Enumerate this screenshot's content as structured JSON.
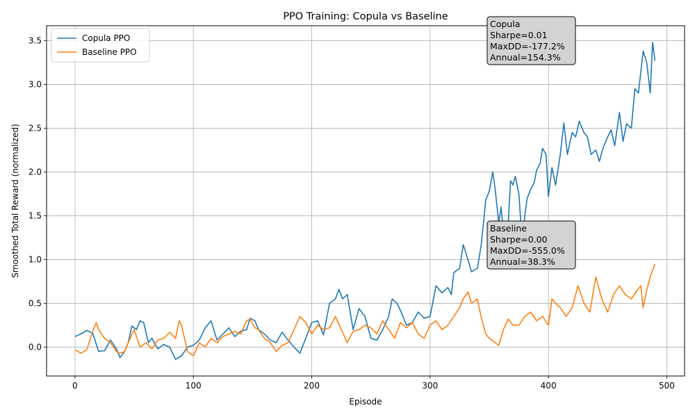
{
  "chart_data": {
    "type": "line",
    "title": "PPO Training: Copula vs Baseline",
    "xlabel": "Episode",
    "ylabel": "Smoothed Total Reward (normalized)",
    "xlim": [
      -24,
      515
    ],
    "ylim": [
      -0.33,
      3.67
    ],
    "xticks": [
      0,
      100,
      200,
      300,
      400,
      500
    ],
    "yticks": [
      0.0,
      0.5,
      1.0,
      1.5,
      2.0,
      2.5,
      3.0,
      3.5
    ],
    "xtick_labels": [
      "0",
      "100",
      "200",
      "300",
      "400",
      "500"
    ],
    "ytick_labels": [
      "0.0",
      "0.5",
      "1.0",
      "1.5",
      "2.0",
      "2.5",
      "3.0",
      "3.5"
    ],
    "grid": true,
    "legend_position": "upper-left",
    "series": [
      {
        "name": "Copula PPO",
        "color": "#1f77b4",
        "x": [
          0,
          5,
          10,
          15,
          20,
          25,
          30,
          35,
          38,
          42,
          45,
          48,
          52,
          55,
          58,
          62,
          65,
          70,
          75,
          80,
          85,
          90,
          95,
          100,
          105,
          110,
          115,
          120,
          125,
          130,
          135,
          140,
          145,
          148,
          152,
          155,
          160,
          165,
          170,
          175,
          180,
          185,
          190,
          195,
          200,
          205,
          210,
          215,
          220,
          223,
          226,
          230,
          235,
          240,
          245,
          250,
          255,
          260,
          265,
          268,
          272,
          275,
          280,
          285,
          290,
          295,
          300,
          305,
          310,
          315,
          318,
          320,
          325,
          328,
          332,
          335,
          340,
          343,
          345,
          347,
          350,
          353,
          355,
          358,
          360,
          362,
          364,
          366,
          368,
          370,
          372,
          375,
          378,
          380,
          382,
          385,
          388,
          390,
          393,
          395,
          398,
          400,
          403,
          406,
          410,
          413,
          416,
          420,
          423,
          426,
          430,
          433,
          436,
          440,
          443,
          446,
          450,
          453,
          456,
          460,
          463,
          466,
          470,
          473,
          476,
          480,
          483,
          486,
          488,
          490
        ],
        "y": [
          0.12,
          0.15,
          0.19,
          0.16,
          -0.05,
          -0.04,
          0.08,
          -0.02,
          -0.12,
          -0.05,
          0.05,
          0.24,
          0.2,
          0.3,
          0.28,
          0.05,
          0.1,
          -0.02,
          0.03,
          0.0,
          -0.14,
          -0.1,
          0.0,
          0.02,
          0.08,
          0.22,
          0.3,
          0.08,
          0.15,
          0.22,
          0.12,
          0.18,
          0.2,
          0.33,
          0.3,
          0.2,
          0.15,
          0.08,
          0.05,
          0.17,
          0.08,
          0.0,
          -0.07,
          0.1,
          0.28,
          0.3,
          0.14,
          0.5,
          0.55,
          0.66,
          0.55,
          0.6,
          0.2,
          0.44,
          0.35,
          0.1,
          0.08,
          0.2,
          0.35,
          0.55,
          0.5,
          0.42,
          0.25,
          0.28,
          0.4,
          0.33,
          0.35,
          0.7,
          0.62,
          0.68,
          0.6,
          0.85,
          0.9,
          1.17,
          1.0,
          0.86,
          0.9,
          1.15,
          1.4,
          1.68,
          1.78,
          2.0,
          1.8,
          1.42,
          1.6,
          1.3,
          1.28,
          1.4,
          1.9,
          1.85,
          1.95,
          1.75,
          1.15,
          1.5,
          1.7,
          1.8,
          1.88,
          2.02,
          2.1,
          2.27,
          2.2,
          1.72,
          2.05,
          1.85,
          2.2,
          2.56,
          2.2,
          2.45,
          2.4,
          2.58,
          2.45,
          2.4,
          2.2,
          2.25,
          2.12,
          2.27,
          2.4,
          2.48,
          2.3,
          2.68,
          2.35,
          2.55,
          2.5,
          2.95,
          2.9,
          3.38,
          3.25,
          2.9,
          3.48,
          3.27
        ]
      },
      {
        "name": "Baseline PPO",
        "color": "#ff7f0e",
        "x": [
          0,
          5,
          10,
          15,
          18,
          20,
          25,
          30,
          35,
          38,
          42,
          45,
          50,
          55,
          60,
          65,
          70,
          75,
          80,
          85,
          88,
          90,
          95,
          100,
          105,
          110,
          115,
          120,
          125,
          130,
          135,
          140,
          145,
          148,
          152,
          155,
          160,
          165,
          170,
          175,
          180,
          185,
          190,
          195,
          200,
          205,
          210,
          215,
          220,
          225,
          230,
          235,
          240,
          245,
          250,
          255,
          260,
          265,
          270,
          275,
          280,
          285,
          290,
          295,
          300,
          305,
          310,
          315,
          320,
          325,
          328,
          332,
          335,
          340,
          343,
          347,
          350,
          355,
          358,
          362,
          366,
          370,
          375,
          380,
          385,
          390,
          395,
          400,
          403,
          406,
          410,
          415,
          420,
          425,
          430,
          435,
          440,
          445,
          450,
          455,
          460,
          465,
          470,
          475,
          478,
          480,
          483,
          486,
          488,
          490
        ],
        "y": [
          -0.03,
          -0.07,
          -0.03,
          0.18,
          0.28,
          0.2,
          0.1,
          0.05,
          -0.05,
          -0.07,
          -0.05,
          0.05,
          0.2,
          0.0,
          0.05,
          -0.02,
          0.08,
          0.1,
          0.17,
          0.1,
          0.3,
          0.25,
          -0.05,
          -0.1,
          0.05,
          0.0,
          0.1,
          0.05,
          0.12,
          0.15,
          0.18,
          0.15,
          0.3,
          0.32,
          0.22,
          0.2,
          0.1,
          0.05,
          -0.05,
          0.02,
          0.05,
          0.2,
          0.35,
          0.28,
          0.15,
          0.25,
          0.2,
          0.22,
          0.35,
          0.2,
          0.05,
          0.18,
          0.2,
          0.25,
          0.22,
          0.15,
          0.3,
          0.2,
          0.1,
          0.28,
          0.22,
          0.28,
          0.15,
          0.1,
          0.25,
          0.3,
          0.2,
          0.25,
          0.35,
          0.45,
          0.55,
          0.63,
          0.5,
          0.55,
          0.35,
          0.15,
          0.1,
          0.05,
          0.02,
          0.2,
          0.32,
          0.25,
          0.25,
          0.35,
          0.4,
          0.3,
          0.35,
          0.25,
          0.55,
          0.5,
          0.45,
          0.35,
          0.45,
          0.7,
          0.5,
          0.4,
          0.8,
          0.55,
          0.4,
          0.6,
          0.7,
          0.6,
          0.55,
          0.65,
          0.7,
          0.45,
          0.65,
          0.8,
          0.88,
          0.95
        ]
      }
    ],
    "annotations": [
      {
        "lines": [
          "Copula",
          "Sharpe=0.01",
          "MaxDD=-177.2%",
          "Annual=154.3%"
        ]
      },
      {
        "lines": [
          "Baseline",
          "Sharpe=0.00",
          "MaxDD=-555.0%",
          "Annual=38.3%"
        ]
      }
    ]
  }
}
